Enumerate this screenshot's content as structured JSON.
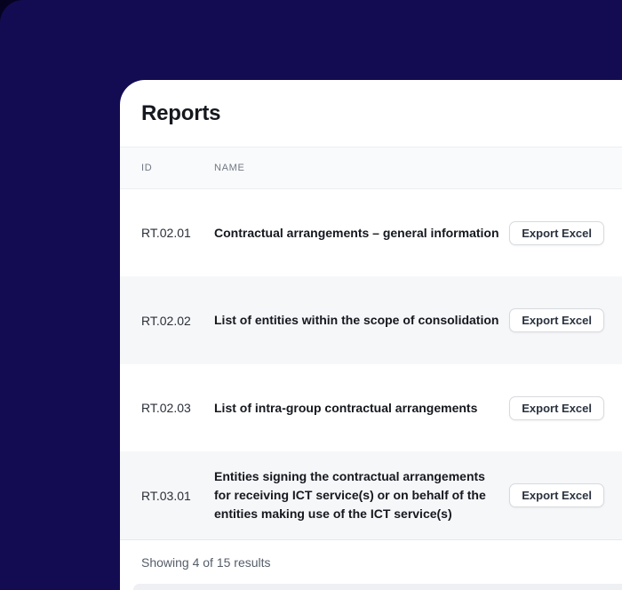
{
  "page": {
    "title": "Reports"
  },
  "table": {
    "columns": [
      {
        "label": "ID"
      },
      {
        "label": "NAME"
      }
    ],
    "rows": [
      {
        "id": "RT.02.01",
        "name": "Contractual arrangements – general information",
        "action": "Export Excel"
      },
      {
        "id": "RT.02.02",
        "name": "List of entities within the scope of consolidation",
        "action": "Export Excel"
      },
      {
        "id": "RT.02.03",
        "name": "List of intra-group contractual arrangements",
        "action": "Export Excel"
      },
      {
        "id": "RT.03.01",
        "name": "Entities signing the contractual arrangements for receiving ICT service(s) or on behalf of the entities making use of the ICT service(s)",
        "action": "Export Excel"
      }
    ],
    "footer": "Showing 4 of 15 results"
  },
  "colors": {
    "background": "#140C52",
    "background_corner": "#060321",
    "card": "#FFFFFF",
    "zebra_row": "#F6F7F9",
    "header_band": "#F9FAFB",
    "divider": "#ECEEF2",
    "text_primary": "#15181E",
    "text_secondary": "#707784",
    "button_border": "#D7DADE"
  }
}
